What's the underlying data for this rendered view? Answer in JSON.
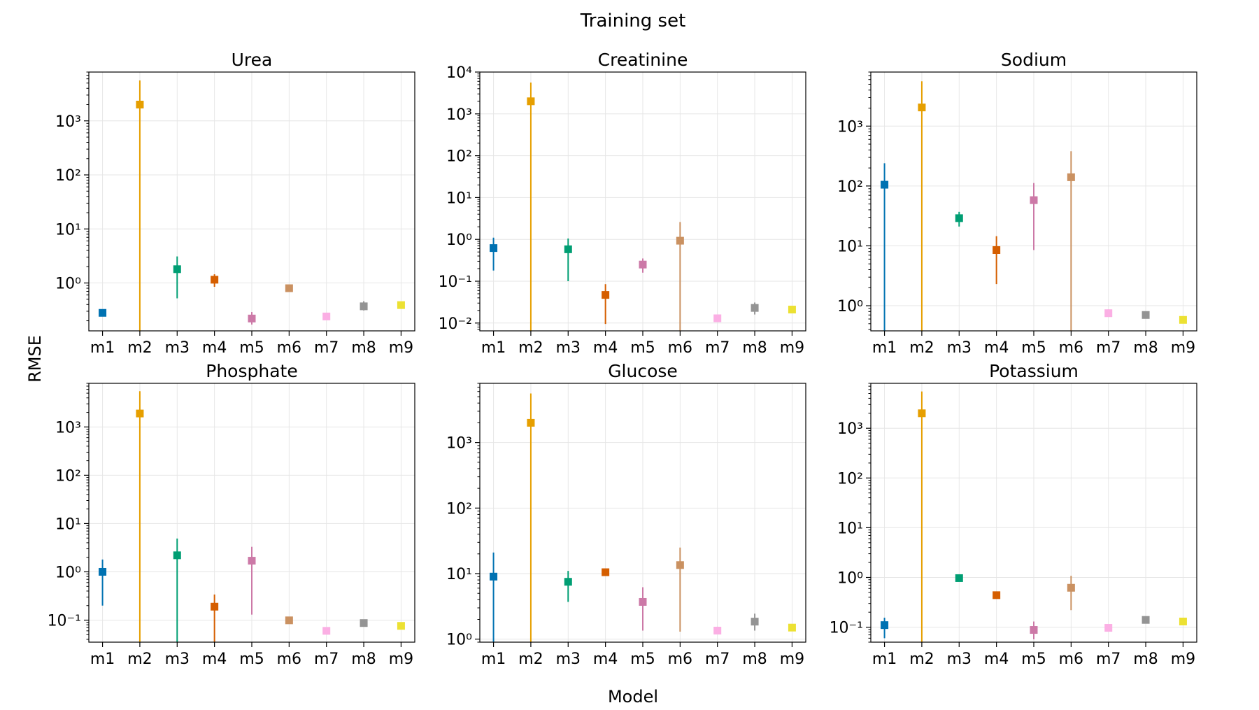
{
  "figure": {
    "suptitle": "Training set",
    "xlabel": "Model",
    "ylabel": "RMSE"
  },
  "chart_data": [
    {
      "type": "scatter",
      "title": "Urea",
      "yscale": "log",
      "ylim": [
        0.13,
        8000
      ],
      "ytick_exponents": [
        0,
        1,
        2,
        3
      ],
      "categories": [
        "m1",
        "m2",
        "m3",
        "m4",
        "m5",
        "m6",
        "m7",
        "m8",
        "m9"
      ],
      "values": [
        0.28,
        2000,
        1.8,
        1.15,
        0.22,
        0.8,
        0.24,
        0.37,
        0.39
      ],
      "err_low": [
        0.26,
        0.13,
        0.52,
        0.85,
        0.17,
        0.75,
        0.22,
        0.31,
        0.35
      ],
      "err_high": [
        0.3,
        5600,
        3.1,
        1.45,
        0.29,
        0.86,
        0.27,
        0.46,
        0.44
      ],
      "grid": true
    },
    {
      "type": "scatter",
      "title": "Creatinine",
      "yscale": "log",
      "ylim": [
        0.0065,
        10000
      ],
      "ytick_exponents": [
        -2,
        -1,
        0,
        1,
        2,
        3,
        4
      ],
      "categories": [
        "m1",
        "m2",
        "m3",
        "m4",
        "m5",
        "m6",
        "m7",
        "m8",
        "m9"
      ],
      "values": [
        0.62,
        2000,
        0.58,
        0.047,
        0.25,
        0.93,
        0.013,
        0.023,
        0.021
      ],
      "err_low": [
        0.18,
        0.0065,
        0.1,
        0.0095,
        0.16,
        0.0065,
        0.012,
        0.016,
        0.018
      ],
      "err_high": [
        1.1,
        5600,
        1.05,
        0.085,
        0.35,
        2.6,
        0.015,
        0.031,
        0.025
      ],
      "grid": true
    },
    {
      "type": "scatter",
      "title": "Sodium",
      "yscale": "log",
      "ylim": [
        0.38,
        8000
      ],
      "ytick_exponents": [
        0,
        1,
        2,
        3
      ],
      "categories": [
        "m1",
        "m2",
        "m3",
        "m4",
        "m5",
        "m6",
        "m7",
        "m8",
        "m9"
      ],
      "values": [
        105,
        2050,
        29,
        8.5,
        58,
        140,
        0.75,
        0.7,
        0.58
      ],
      "err_low": [
        0.38,
        0.38,
        21,
        2.3,
        8.5,
        0.38,
        0.65,
        0.62,
        0.54
      ],
      "err_high": [
        240,
        5600,
        37,
        14.5,
        112,
        380,
        0.87,
        0.8,
        0.63
      ],
      "grid": true
    },
    {
      "type": "scatter",
      "title": "Phosphate",
      "yscale": "log",
      "ylim": [
        0.035,
        8000
      ],
      "ytick_exponents": [
        -1,
        0,
        1,
        2,
        3
      ],
      "categories": [
        "m1",
        "m2",
        "m3",
        "m4",
        "m5",
        "m6",
        "m7",
        "m8",
        "m9"
      ],
      "values": [
        1.0,
        1900,
        2.2,
        0.19,
        1.7,
        0.099,
        0.06,
        0.087,
        0.076
      ],
      "err_low": [
        0.2,
        0.035,
        0.035,
        0.035,
        0.13,
        0.092,
        0.055,
        0.08,
        0.071
      ],
      "err_high": [
        1.8,
        5500,
        4.9,
        0.34,
        3.3,
        0.107,
        0.066,
        0.095,
        0.083
      ],
      "grid": true
    },
    {
      "type": "scatter",
      "title": "Glucose",
      "yscale": "log",
      "ylim": [
        0.9,
        8000
      ],
      "ytick_exponents": [
        0,
        1,
        2,
        3
      ],
      "categories": [
        "m1",
        "m2",
        "m3",
        "m4",
        "m5",
        "m6",
        "m7",
        "m8",
        "m9"
      ],
      "values": [
        9,
        2000,
        7.5,
        10.5,
        3.7,
        13.5,
        1.35,
        1.85,
        1.5
      ],
      "err_low": [
        0.9,
        0.9,
        3.7,
        9.7,
        1.35,
        1.3,
        1.2,
        1.35,
        1.35
      ],
      "err_high": [
        21,
        5600,
        11,
        11.5,
        6.2,
        25,
        1.55,
        2.45,
        1.7
      ],
      "grid": true
    },
    {
      "type": "scatter",
      "title": "Potassium",
      "yscale": "log",
      "ylim": [
        0.05,
        8000
      ],
      "ytick_exponents": [
        -1,
        0,
        1,
        2,
        3
      ],
      "categories": [
        "m1",
        "m2",
        "m3",
        "m4",
        "m5",
        "m6",
        "m7",
        "m8",
        "m9"
      ],
      "values": [
        0.11,
        2000,
        0.97,
        0.44,
        0.088,
        0.62,
        0.097,
        0.14,
        0.13
      ],
      "err_low": [
        0.06,
        0.05,
        0.82,
        0.39,
        0.057,
        0.22,
        0.087,
        0.12,
        0.12
      ],
      "err_high": [
        0.155,
        5500,
        1.12,
        0.49,
        0.13,
        1.08,
        0.108,
        0.165,
        0.14
      ],
      "grid": true
    }
  ],
  "colors": {
    "m1": "#0072b2",
    "m2": "#e69f00",
    "m3": "#009e73",
    "m4": "#d55e00",
    "m5": "#cc79a7",
    "m6": "#ca9161",
    "m7": "#fbafe4",
    "m8": "#949494",
    "m9": "#ece133",
    "grid": "#e6e6e6",
    "axes": "#000000"
  }
}
